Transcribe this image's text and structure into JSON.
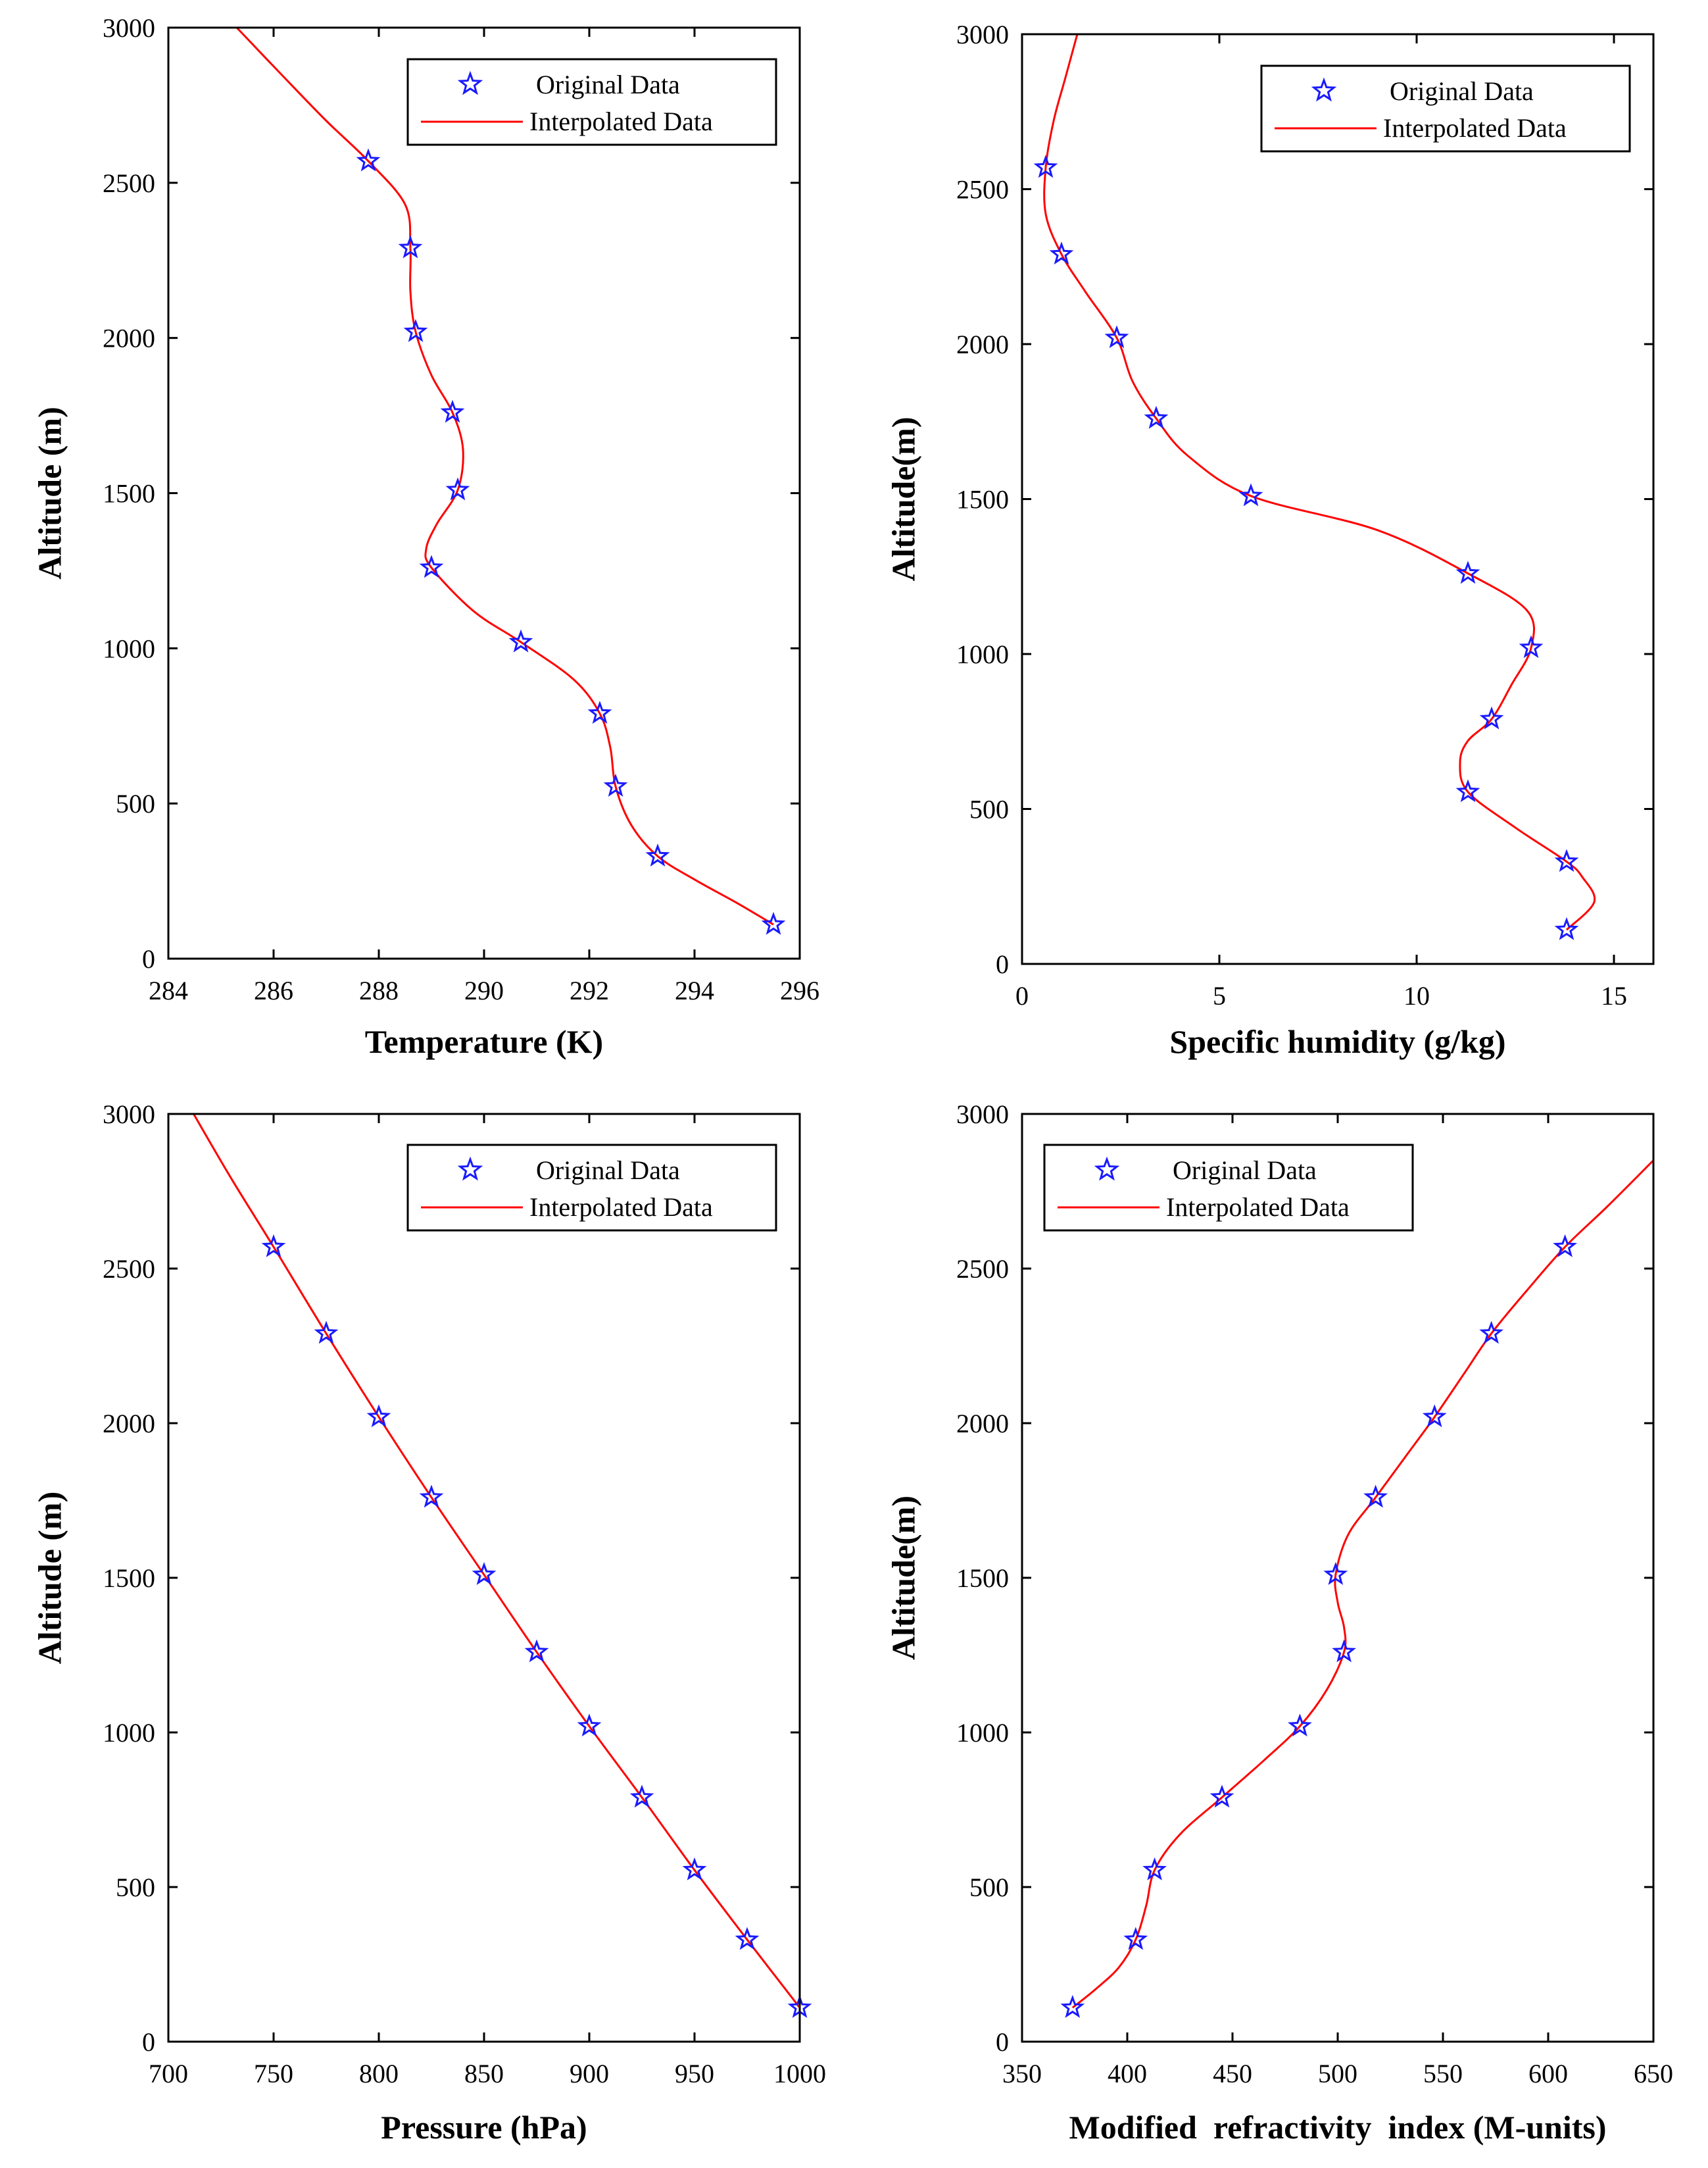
{
  "figure": {
    "legend": {
      "original_label": "Original Data",
      "interpolated_label": "Interpolated Data"
    },
    "colors": {
      "marker": "#1a1aff",
      "line": "#ff0000",
      "axis": "#000000"
    }
  },
  "chart_data": [
    {
      "type": "scatter",
      "subtype": "scatter+line",
      "title": "",
      "xlabel": "Temperature (K)",
      "ylabel": "Altitude (m)",
      "xlim": [
        284,
        296
      ],
      "ylim": [
        0,
        3000
      ],
      "xticks": [
        284,
        286,
        288,
        290,
        292,
        294,
        296
      ],
      "xtick_labels": [
        "284",
        "286",
        "288",
        "290",
        "292",
        "294",
        "296"
      ],
      "yticks": [
        0,
        500,
        1000,
        1500,
        2000,
        2500,
        3000
      ],
      "ytick_labels": [
        "0",
        "500",
        "1000",
        "1500",
        "2000",
        "2500",
        "3000"
      ],
      "legend_position": "top-right",
      "series": [
        {
          "name": "Original Data",
          "style": "star",
          "x": [
            295.5,
            293.3,
            292.5,
            292.2,
            290.7,
            289.0,
            289.5,
            289.4,
            288.7,
            288.6,
            287.8
          ],
          "y": [
            110,
            330,
            555,
            790,
            1020,
            1260,
            1510,
            1760,
            2020,
            2290,
            2570
          ]
        },
        {
          "name": "Interpolated Data",
          "style": "line",
          "x": [
            295.5,
            294.8,
            294.0,
            293.3,
            292.8,
            292.5,
            292.4,
            292.2,
            291.7,
            290.7,
            289.8,
            289.0,
            288.9,
            289.1,
            289.5,
            289.6,
            289.4,
            289.0,
            288.7,
            288.6,
            288.6,
            288.5,
            287.8,
            287.0,
            286.2,
            285.3
          ],
          "y": [
            110,
            180,
            255,
            330,
            430,
            555,
            680,
            790,
            900,
            1020,
            1120,
            1260,
            1320,
            1400,
            1510,
            1640,
            1760,
            1880,
            2020,
            2150,
            2290,
            2430,
            2570,
            2700,
            2840,
            3000
          ]
        }
      ]
    },
    {
      "type": "scatter",
      "subtype": "scatter+line",
      "title": "",
      "xlabel": "Specific humidity (g/kg)",
      "ylabel": "Altitude(m)",
      "xlim": [
        0,
        16
      ],
      "ylim": [
        0,
        3000
      ],
      "xticks": [
        0,
        5,
        10,
        15
      ],
      "xtick_labels": [
        "0",
        "5",
        "10",
        "15"
      ],
      "yticks": [
        0,
        500,
        1000,
        1500,
        2000,
        2500,
        3000
      ],
      "ytick_labels": [
        "0",
        "500",
        "1000",
        "1500",
        "2000",
        "2500",
        "3000"
      ],
      "legend_position": "top-right",
      "series": [
        {
          "name": "Original Data",
          "style": "star",
          "x": [
            13.8,
            13.8,
            11.3,
            11.9,
            12.9,
            11.3,
            5.8,
            3.4,
            2.4,
            1.0,
            0.6
          ],
          "y": [
            110,
            330,
            555,
            790,
            1020,
            1260,
            1510,
            1760,
            2020,
            2290,
            2570
          ]
        },
        {
          "name": "Interpolated Data",
          "style": "line",
          "x": [
            13.8,
            14.5,
            14.2,
            13.8,
            12.5,
            11.3,
            11.1,
            11.3,
            11.9,
            12.4,
            12.9,
            12.8,
            11.3,
            9.0,
            5.8,
            4.2,
            3.4,
            2.8,
            2.4,
            1.6,
            1.0,
            0.6,
            0.6,
            0.8,
            1.1,
            1.4
          ],
          "y": [
            110,
            200,
            280,
            330,
            440,
            555,
            650,
            720,
            790,
            900,
            1020,
            1140,
            1260,
            1400,
            1510,
            1640,
            1760,
            1880,
            2020,
            2170,
            2290,
            2420,
            2570,
            2720,
            2860,
            3000
          ]
        }
      ]
    },
    {
      "type": "scatter",
      "subtype": "scatter+line",
      "title": "",
      "xlabel": "Pressure (hPa)",
      "ylabel": "Altitude (m)",
      "xlim": [
        700,
        1000
      ],
      "ylim": [
        0,
        3000
      ],
      "xticks": [
        700,
        750,
        800,
        850,
        900,
        950,
        1000
      ],
      "xtick_labels": [
        "700",
        "750",
        "800",
        "850",
        "900",
        "950",
        "1000"
      ],
      "yticks": [
        0,
        500,
        1000,
        1500,
        2000,
        2500,
        3000
      ],
      "ytick_labels": [
        "0",
        "500",
        "1000",
        "1500",
        "2000",
        "2500",
        "3000"
      ],
      "legend_position": "top-right",
      "series": [
        {
          "name": "Original Data",
          "style": "star",
          "x": [
            1000,
            975,
            950,
            925,
            900,
            875,
            850,
            825,
            800,
            775,
            750
          ],
          "y": [
            110,
            330,
            555,
            790,
            1020,
            1260,
            1510,
            1760,
            2020,
            2290,
            2570
          ]
        },
        {
          "name": "Interpolated Data",
          "style": "line",
          "x": [
            1000,
            975,
            950,
            925,
            900,
            875,
            850,
            825,
            800,
            775,
            750,
            730,
            712
          ],
          "y": [
            110,
            330,
            555,
            790,
            1020,
            1260,
            1510,
            1760,
            2020,
            2290,
            2570,
            2790,
            3000
          ]
        }
      ]
    },
    {
      "type": "scatter",
      "subtype": "scatter+line",
      "title": "",
      "xlabel": "Modified  refractivity  index (M-units)",
      "ylabel": "Altitude(m)",
      "xlim": [
        350,
        650
      ],
      "ylim": [
        0,
        3000
      ],
      "xticks": [
        350,
        400,
        450,
        500,
        550,
        600,
        650
      ],
      "xtick_labels": [
        "350",
        "400",
        "450",
        "500",
        "550",
        "600",
        "650"
      ],
      "yticks": [
        0,
        500,
        1000,
        1500,
        2000,
        2500,
        3000
      ],
      "ytick_labels": [
        "0",
        "500",
        "1000",
        "1500",
        "2000",
        "2500",
        "3000"
      ],
      "legend_position": "top-left",
      "series": [
        {
          "name": "Original Data",
          "style": "star",
          "x": [
            374,
            404,
            413,
            445,
            482,
            503,
            499,
            518,
            546,
            573,
            608
          ],
          "y": [
            110,
            330,
            555,
            790,
            1020,
            1260,
            1510,
            1760,
            2020,
            2290,
            2570
          ]
        },
        {
          "name": "Interpolated Data",
          "style": "line",
          "x": [
            374,
            385,
            396,
            404,
            409,
            413,
            425,
            445,
            465,
            482,
            495,
            503,
            503,
            500,
            499,
            505,
            518,
            532,
            546,
            560,
            573,
            590,
            608,
            628,
            650
          ],
          "y": [
            110,
            170,
            240,
            330,
            440,
            555,
            670,
            790,
            910,
            1020,
            1140,
            1260,
            1340,
            1420,
            1510,
            1640,
            1760,
            1890,
            2020,
            2160,
            2290,
            2430,
            2570,
            2700,
            2850
          ]
        }
      ]
    }
  ]
}
